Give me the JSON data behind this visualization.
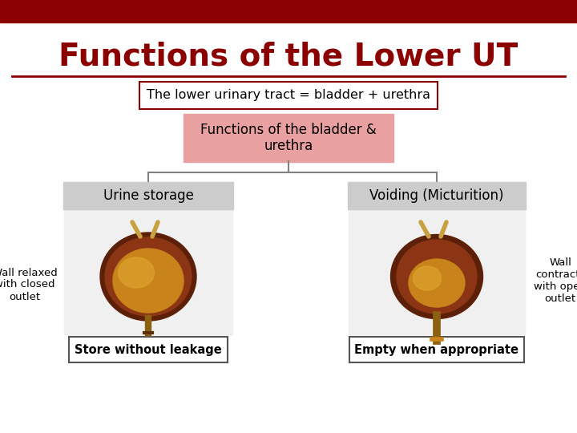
{
  "title": "Functions of the Lower UT",
  "title_color": "#8B0000",
  "header_bar_color": "#8B0000",
  "top_box_text": "The lower urinary tract = bladder + urethra",
  "middle_box_text": "Functions of the bladder &\nurethra",
  "middle_box_bg": "#E8A0A0",
  "left_box_text": "Urine storage",
  "right_box_text": "Voiding (Micturition)",
  "child_box_bg": "#CCCCCC",
  "left_label": "Wall relaxed\nwith closed\noutlet",
  "right_label": "Wall\ncontracts\nwith open\noutlet",
  "left_bottom_text": "Store without leakage",
  "right_bottom_text": "Empty when appropriate",
  "bg_color": "#FFFFFF",
  "line_color": "#808080",
  "border_color": "#8B0000",
  "bottom_box_border": "#555555",
  "separator_color": "#8B0000"
}
